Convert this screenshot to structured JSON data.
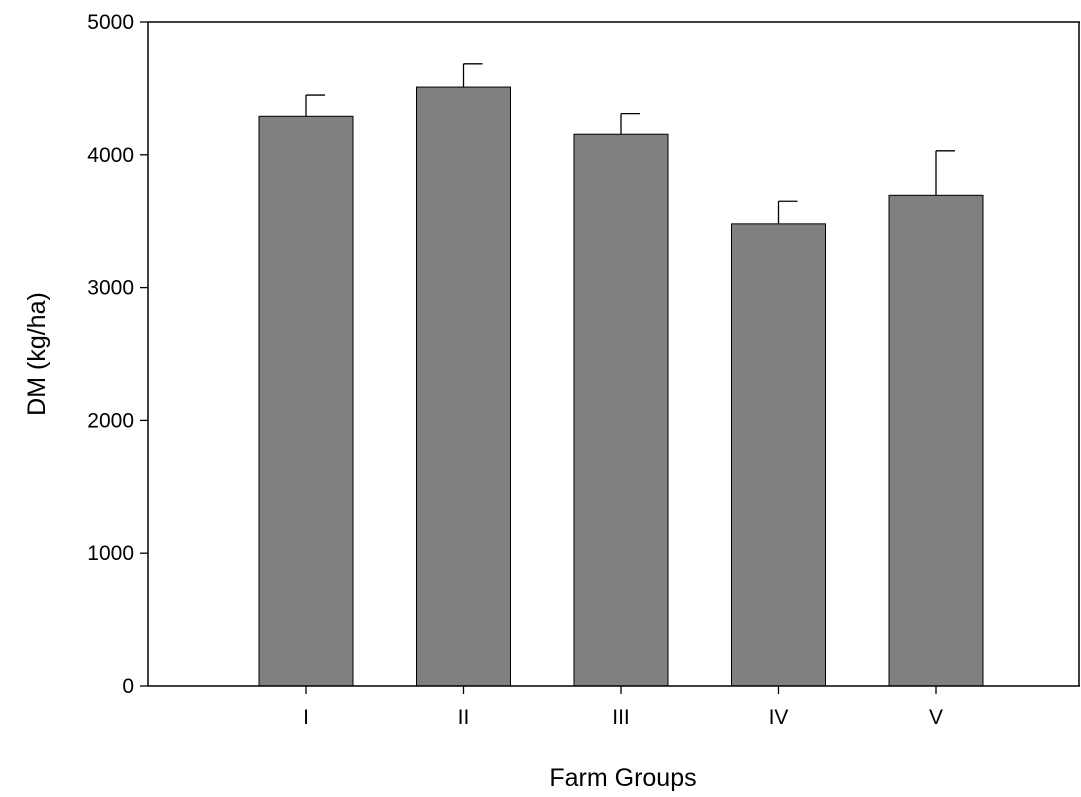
{
  "chart_data": {
    "type": "bar",
    "title": "",
    "xlabel": "Farm Groups",
    "ylabel": "DM (kg/ha)",
    "categories": [
      "I",
      "II",
      "III",
      "IV",
      "V"
    ],
    "values": [
      4290,
      4510,
      4155,
      3480,
      3695
    ],
    "error_upper": [
      160,
      175,
      155,
      170,
      335
    ],
    "ylim": [
      0,
      5000
    ],
    "yticks": [
      0,
      1000,
      2000,
      3000,
      4000,
      5000
    ],
    "grid": false,
    "legend": "none",
    "bar_color": "#808080",
    "edge_color": "#000000"
  }
}
